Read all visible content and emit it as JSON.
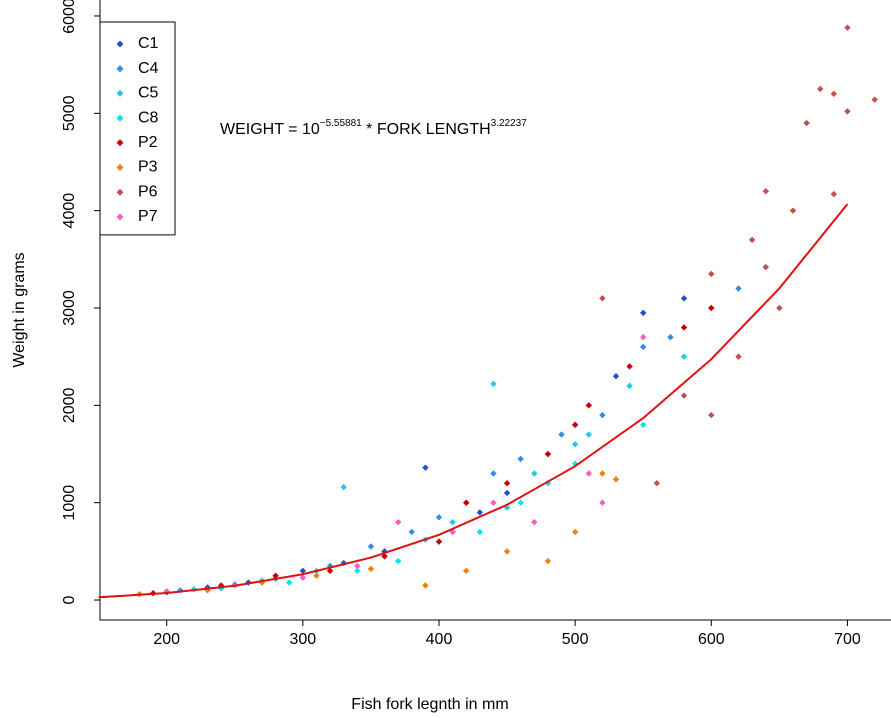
{
  "chart_data": {
    "type": "scatter",
    "xlabel": "Fish fork legnth in mm",
    "ylabel": "Weight in grams",
    "annotation": {
      "text": "WEIGHT = 10",
      "exponent1": "−5.55881",
      "middle": " * FORK LENGTH",
      "exponent2": "3.22237"
    },
    "xlim": [
      151,
      732
    ],
    "ylim": [
      -205,
      6164
    ],
    "xticks": [
      200,
      300,
      400,
      500,
      600,
      700
    ],
    "yticks": [
      0,
      1000,
      2000,
      3000,
      4000,
      5000,
      6000
    ],
    "legend": "top-left",
    "series": [
      {
        "name": "C1",
        "color": "#1f4fd6",
        "x": [
          200,
          230,
          260,
          300,
          330,
          360,
          390,
          410,
          430,
          450,
          480,
          500,
          530,
          550,
          580
        ],
        "values": [
          80,
          130,
          180,
          300,
          380,
          500,
          1360,
          700,
          900,
          1100,
          1500,
          1800,
          2300,
          2950,
          3100
        ]
      },
      {
        "name": "C4",
        "color": "#2f8ee8",
        "x": [
          210,
          250,
          280,
          320,
          350,
          380,
          400,
          420,
          440,
          460,
          490,
          520,
          550,
          570,
          620
        ],
        "values": [
          100,
          160,
          220,
          350,
          550,
          700,
          850,
          1000,
          1300,
          1450,
          1700,
          1900,
          2600,
          2700,
          3200
        ]
      },
      {
        "name": "C5",
        "color": "#29c5e6",
        "x": [
          220,
          270,
          310,
          330,
          360,
          390,
          410,
          440,
          450,
          470,
          500,
          510,
          540,
          580
        ],
        "values": [
          110,
          200,
          300,
          1160,
          450,
          620,
          800,
          2220,
          950,
          1300,
          1600,
          1700,
          2200,
          2500
        ]
      },
      {
        "name": "C8",
        "color": "#00e5ee",
        "x": [
          240,
          290,
          340,
          370,
          400,
          430,
          460,
          480,
          500,
          550
        ],
        "values": [
          120,
          180,
          300,
          400,
          600,
          700,
          1000,
          1200,
          1400,
          1800
        ]
      },
      {
        "name": "P2",
        "color": "#cc0000",
        "x": [
          190,
          240,
          280,
          320,
          360,
          400,
          420,
          450,
          480,
          500,
          510,
          540,
          580,
          600
        ],
        "values": [
          70,
          150,
          250,
          300,
          450,
          600,
          1000,
          1200,
          1500,
          1800,
          2000,
          2400,
          2800,
          3000
        ]
      },
      {
        "name": "P3",
        "color": "#f07f12",
        "x": [
          180,
          230,
          270,
          310,
          350,
          390,
          420,
          450,
          480,
          500,
          520,
          530
        ],
        "values": [
          60,
          100,
          180,
          250,
          320,
          150,
          300,
          500,
          400,
          700,
          1300,
          1240
        ]
      },
      {
        "name": "P6",
        "color": "#c05050",
        "x": [
          520,
          560,
          580,
          600,
          620,
          630,
          640,
          650,
          660,
          670,
          680,
          690,
          700,
          700,
          720,
          690,
          600,
          640
        ],
        "values": [
          3100,
          1200,
          2100,
          1900,
          2500,
          3700,
          4200,
          3000,
          4000,
          4900,
          5250,
          5200,
          5880,
          5020,
          5140,
          4170,
          3350,
          3420
        ]
      },
      {
        "name": "P7",
        "color": "#f060c0",
        "x": [
          200,
          250,
          300,
          340,
          370,
          410,
          440,
          470,
          510,
          520,
          550
        ],
        "values": [
          90,
          150,
          230,
          350,
          800,
          700,
          1000,
          800,
          1300,
          1000,
          2700
        ]
      }
    ],
    "fit": {
      "color": "#e01010",
      "x": [
        150,
        200,
        250,
        300,
        350,
        400,
        450,
        500,
        550,
        600,
        650,
        700
      ],
      "values": [
        28.4,
        71.8,
        147,
        265,
        436,
        670,
        979,
        1375,
        1869,
        2474,
        3202,
        4067
      ]
    }
  }
}
